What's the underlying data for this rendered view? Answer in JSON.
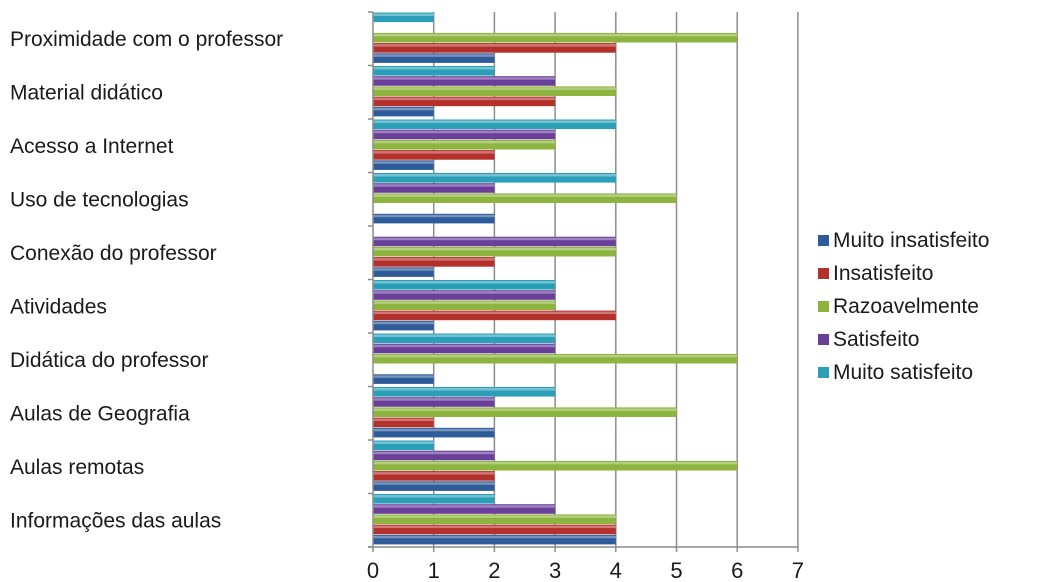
{
  "chart_data": {
    "type": "bar",
    "orientation": "horizontal",
    "categories": [
      "Informações das aulas",
      "Aulas remotas",
      "Aulas de Geografia",
      "Didática do professor",
      "Atividades",
      "Conexão do professor",
      "Uso de tecnologias",
      "Acesso a Internet",
      "Material didático",
      "Proximidade com o professor"
    ],
    "series": [
      {
        "name": "Muito insatisfeito",
        "color": "#2e5b9a",
        "values": [
          4,
          2,
          2,
          1,
          1,
          1,
          2,
          1,
          1,
          2
        ]
      },
      {
        "name": "Insatisfeito",
        "color": "#b3302b",
        "values": [
          4,
          2,
          1,
          0,
          4,
          2,
          0,
          2,
          3,
          4
        ]
      },
      {
        "name": "Razoavelmente",
        "color": "#8cb43e",
        "values": [
          4,
          6,
          5,
          6,
          3,
          4,
          5,
          3,
          4,
          6
        ]
      },
      {
        "name": "Satisfeito",
        "color": "#6a3f9a",
        "values": [
          3,
          2,
          2,
          3,
          3,
          4,
          2,
          3,
          3,
          0
        ]
      },
      {
        "name": "Muito satisfeito",
        "color": "#2b9fb8",
        "values": [
          2,
          1,
          3,
          3,
          3,
          0,
          4,
          4,
          2,
          1
        ]
      }
    ],
    "xlim": [
      0,
      7
    ],
    "x_ticks": [
      "0",
      "1",
      "2",
      "3",
      "4",
      "5",
      "6",
      "7"
    ],
    "grid": "vertical",
    "legend_position": "right"
  }
}
